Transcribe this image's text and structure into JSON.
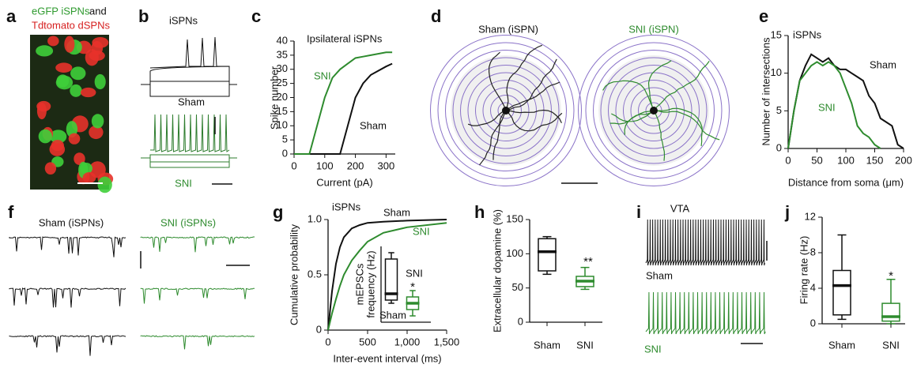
{
  "panel_labels": [
    "a",
    "b",
    "c",
    "d",
    "e",
    "f",
    "g",
    "h",
    "i",
    "j"
  ],
  "panel_a": {
    "green_text": "eGFP iSPNs",
    "and_text": "and",
    "red_text": "Tdtomato dSPNs"
  },
  "panel_b": {
    "title": "iSPNs",
    "trace_labels": [
      "Sham",
      "SNI"
    ]
  },
  "panel_d": {
    "titles": [
      "Sham (iSPN)",
      "SNI (iSPN)"
    ]
  },
  "panel_f": {
    "titles": [
      "Sham (iSPNs)",
      "SNI (iSPNs)"
    ]
  },
  "panel_i": {
    "title": "VTA",
    "trace_labels": [
      "Sham",
      "SNI"
    ]
  },
  "chart_data": [
    {
      "type": "line",
      "title": "Ipsilateral iSPNs",
      "xlabel": "Current (pA)",
      "ylabel": "Spike number",
      "x": [
        0,
        50,
        75,
        100,
        125,
        150,
        175,
        200,
        225,
        250,
        300,
        320
      ],
      "series": [
        {
          "name": "Sham",
          "color": "#111111",
          "values": [
            0,
            0,
            0,
            0,
            0,
            0,
            10,
            20,
            25,
            28,
            31,
            32
          ]
        },
        {
          "name": "SNI",
          "color": "#2e8b2e",
          "values": [
            0,
            0,
            10,
            20,
            27,
            30,
            32,
            34,
            34.5,
            35,
            36,
            36
          ]
        }
      ],
      "xlim": [
        0,
        330
      ],
      "xticks": [
        0,
        100,
        200,
        300
      ],
      "ylim": [
        0,
        40
      ],
      "yticks": [
        0,
        5,
        10,
        15,
        20,
        25,
        30,
        35,
        40
      ]
    },
    {
      "type": "line",
      "title": "iSPNs",
      "xlabel": "Distance from soma (μm)",
      "ylabel": "Number of intersections",
      "x": [
        0,
        10,
        20,
        30,
        40,
        50,
        60,
        70,
        80,
        90,
        100,
        110,
        120,
        130,
        140,
        150,
        160,
        170,
        180,
        190,
        200
      ],
      "series": [
        {
          "name": "Sham",
          "color": "#111111",
          "values": [
            0,
            5,
            9,
            11,
            12.5,
            12,
            11.5,
            12,
            11,
            10.5,
            10.5,
            10,
            9.5,
            9,
            7,
            6,
            4,
            3.5,
            3,
            0.5,
            0
          ]
        },
        {
          "name": "SNI",
          "color": "#2e8b2e",
          "values": [
            0,
            5,
            9,
            10,
            11,
            11.5,
            11,
            11.5,
            11,
            10,
            8,
            6,
            3,
            2,
            1.5,
            0.5,
            0,
            null,
            null,
            null,
            null
          ]
        }
      ],
      "xlim": [
        0,
        200
      ],
      "xticks": [
        0,
        50,
        100,
        150,
        200
      ],
      "ylim": [
        0,
        15
      ],
      "yticks": [
        0,
        5,
        10,
        15
      ]
    },
    {
      "type": "line",
      "title": "iSPNs",
      "xlabel": "Inter-event interval (ms)",
      "ylabel": "Cumulative probability",
      "x": [
        0,
        50,
        100,
        150,
        200,
        300,
        400,
        500,
        700,
        1000,
        1500
      ],
      "series": [
        {
          "name": "Sham",
          "color": "#111111",
          "values": [
            0,
            0.35,
            0.6,
            0.75,
            0.84,
            0.92,
            0.95,
            0.97,
            0.98,
            0.99,
            1
          ]
        },
        {
          "name": "SNI",
          "color": "#2e8b2e",
          "values": [
            0,
            0.15,
            0.28,
            0.4,
            0.5,
            0.63,
            0.72,
            0.8,
            0.88,
            0.93,
            0.97
          ]
        }
      ],
      "xlim": [
        0,
        1500
      ],
      "xticks": [
        0,
        500,
        {
          "value": 1000,
          "label": "1,000"
        },
        {
          "value": 1500,
          "label": "1,500"
        }
      ],
      "ylim": [
        0,
        1
      ],
      "yticks": [
        0,
        0.5,
        {
          "value": 1,
          "label": "1.0"
        }
      ]
    },
    {
      "type": "box",
      "ylabel": [
        "mEPSCs",
        "frequency (Hz)"
      ],
      "categories": [
        "Sham",
        "SNI"
      ],
      "colors": [
        "#111111",
        "#2e8b2e"
      ],
      "boxes": [
        {
          "min": 3,
          "q1": 3.5,
          "median": 4.5,
          "q3": 10,
          "max": 11
        },
        {
          "min": 1,
          "q1": 2,
          "median": 3,
          "q3": 4,
          "max": 5
        }
      ],
      "significance": "*",
      "ylim": [
        0,
        12
      ]
    },
    {
      "type": "box",
      "ylabel": [
        "Extracellular dopamine (%)"
      ],
      "categories": [
        "Sham",
        "SNI"
      ],
      "colors": [
        "#111111",
        "#2e8b2e"
      ],
      "boxes": [
        {
          "min": 70,
          "q1": 75,
          "median": 103,
          "q3": 122,
          "max": 125
        },
        {
          "min": 48,
          "q1": 52,
          "median": 60,
          "q3": 67,
          "max": 80
        }
      ],
      "significance": "**",
      "ylim": [
        0,
        150
      ],
      "yticks": [
        0,
        50,
        100,
        150
      ]
    },
    {
      "type": "box",
      "ylabel": [
        "Firing rate (Hz)"
      ],
      "categories": [
        "Sham",
        "SNI"
      ],
      "colors": [
        "#111111",
        "#2e8b2e"
      ],
      "boxes": [
        {
          "min": 0.5,
          "q1": 1,
          "median": 4.3,
          "q3": 6,
          "max": 10
        },
        {
          "min": 0,
          "q1": 0.3,
          "median": 0.8,
          "q3": 2.3,
          "max": 5
        }
      ],
      "significance": "*",
      "ylim": [
        0,
        12
      ],
      "yticks": [
        0,
        4,
        8,
        12
      ]
    }
  ]
}
